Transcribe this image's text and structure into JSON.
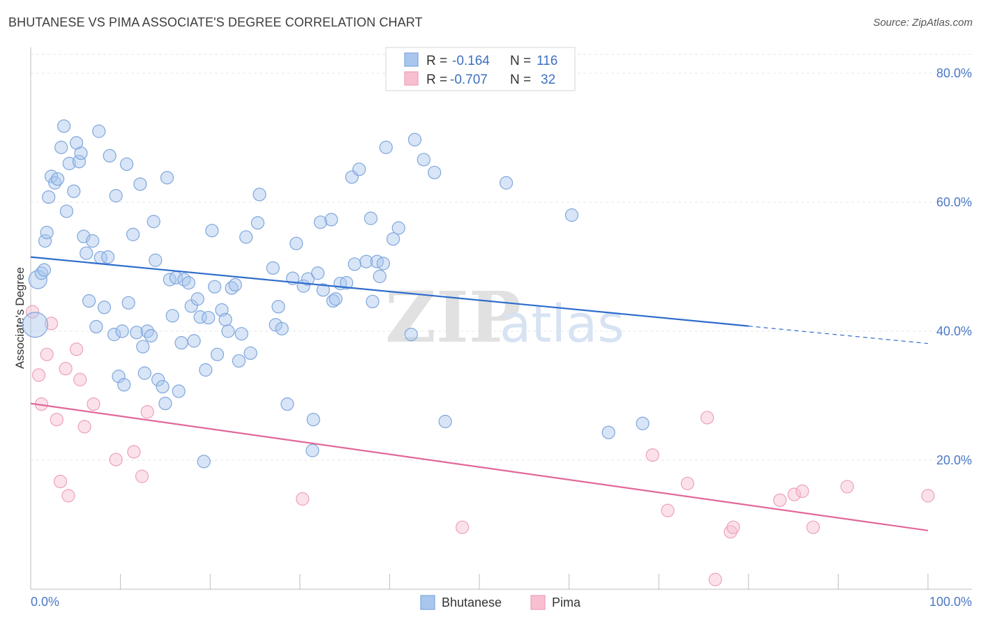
{
  "title": "BHUTANESE VS PIMA ASSOCIATE'S DEGREE CORRELATION CHART",
  "source": "Source: ZipAtlas.com",
  "watermark": {
    "zip": "ZIP",
    "atlas": "atlas"
  },
  "colors": {
    "bhutanese_fill": "#a9c6ee",
    "bhutanese_stroke": "#7fa6dc",
    "bhutanese_line": "#2d6ccc",
    "pima_fill": "#f7bfd0",
    "pima_stroke": "#eea0b8",
    "pima_line": "#e2679a",
    "grid": "#e4e4e4",
    "axis_label": "#4a78c4"
  },
  "legend": {
    "rows": [
      {
        "r_label": "R =",
        "r_value": "-0.164",
        "n_label": "N =",
        "n_value": "116"
      },
      {
        "r_label": "R =",
        "r_value": "-0.707",
        "n_label": "N =",
        "n_value": "32"
      }
    ]
  },
  "bottom_legend": [
    "Bhutanese",
    "Pima"
  ],
  "chart_data": {
    "type": "scatter",
    "title": "BHUTANESE VS PIMA ASSOCIATE'S DEGREE CORRELATION CHART",
    "xlabel": "",
    "ylabel": "Associate's Degree",
    "xlim": [
      0,
      100
    ],
    "ylim": [
      0,
      84
    ],
    "x_tick_labels": [
      "0.0%",
      "100.0%"
    ],
    "y_ticks": [
      20,
      40,
      60,
      80
    ],
    "y_tick_labels": [
      "20.0%",
      "40.0%",
      "60.0%",
      "80.0%"
    ],
    "legend_position": "top-center",
    "series": [
      {
        "name": "Bhutanese",
        "r": -0.164,
        "n": 116,
        "trend": {
          "x0": 0,
          "y0": 51.5,
          "x1": 80,
          "y1": 40.8,
          "dashed_to_x": 100,
          "dashed_to_y": 38.1
        },
        "points": [
          [
            0.5,
            41.0
          ],
          [
            0.8,
            48.0
          ],
          [
            1.2,
            49.0
          ],
          [
            1.5,
            49.5
          ],
          [
            1.6,
            54.0
          ],
          [
            1.8,
            55.3
          ],
          [
            2.0,
            60.8
          ],
          [
            2.3,
            64.0
          ],
          [
            2.7,
            63.0
          ],
          [
            3.0,
            63.6
          ],
          [
            3.4,
            68.5
          ],
          [
            3.7,
            71.8
          ],
          [
            4.0,
            58.6
          ],
          [
            4.3,
            66.0
          ],
          [
            4.8,
            61.7
          ],
          [
            5.1,
            69.2
          ],
          [
            5.4,
            66.3
          ],
          [
            5.6,
            67.6
          ],
          [
            5.9,
            54.7
          ],
          [
            6.2,
            52.1
          ],
          [
            6.5,
            44.7
          ],
          [
            6.9,
            54.0
          ],
          [
            7.3,
            40.7
          ],
          [
            7.6,
            71.0
          ],
          [
            7.8,
            51.4
          ],
          [
            8.2,
            43.7
          ],
          [
            8.6,
            51.5
          ],
          [
            8.8,
            67.2
          ],
          [
            9.3,
            39.5
          ],
          [
            9.5,
            61.0
          ],
          [
            9.8,
            33.0
          ],
          [
            10.2,
            40.0
          ],
          [
            10.4,
            31.7
          ],
          [
            10.7,
            65.9
          ],
          [
            10.9,
            44.4
          ],
          [
            11.4,
            55.0
          ],
          [
            11.8,
            39.8
          ],
          [
            12.2,
            62.8
          ],
          [
            12.5,
            37.6
          ],
          [
            12.7,
            33.5
          ],
          [
            13.0,
            40.0
          ],
          [
            13.4,
            39.3
          ],
          [
            13.7,
            57.0
          ],
          [
            13.9,
            51.0
          ],
          [
            14.2,
            32.5
          ],
          [
            14.7,
            31.4
          ],
          [
            15.0,
            28.8
          ],
          [
            15.2,
            63.8
          ],
          [
            15.5,
            48.0
          ],
          [
            15.8,
            42.4
          ],
          [
            16.2,
            48.3
          ],
          [
            16.5,
            30.7
          ],
          [
            16.8,
            38.2
          ],
          [
            17.1,
            48.0
          ],
          [
            17.6,
            47.5
          ],
          [
            17.9,
            43.9
          ],
          [
            18.2,
            38.5
          ],
          [
            18.6,
            45.0
          ],
          [
            18.9,
            42.2
          ],
          [
            19.3,
            19.8
          ],
          [
            19.5,
            34.0
          ],
          [
            19.8,
            42.1
          ],
          [
            20.2,
            55.6
          ],
          [
            20.5,
            46.9
          ],
          [
            20.8,
            36.4
          ],
          [
            21.3,
            43.3
          ],
          [
            21.7,
            41.8
          ],
          [
            22.0,
            40.0
          ],
          [
            22.4,
            46.7
          ],
          [
            22.8,
            47.2
          ],
          [
            23.2,
            35.4
          ],
          [
            23.5,
            39.6
          ],
          [
            24.0,
            54.6
          ],
          [
            24.5,
            36.6
          ],
          [
            25.3,
            56.8
          ],
          [
            25.5,
            61.2
          ],
          [
            27.0,
            49.8
          ],
          [
            27.3,
            41.0
          ],
          [
            27.6,
            43.8
          ],
          [
            28.0,
            40.4
          ],
          [
            28.6,
            28.7
          ],
          [
            29.2,
            48.2
          ],
          [
            29.6,
            53.6
          ],
          [
            30.4,
            47.0
          ],
          [
            30.9,
            48.1
          ],
          [
            31.5,
            26.3
          ],
          [
            31.4,
            21.5
          ],
          [
            32.0,
            49.0
          ],
          [
            32.3,
            56.9
          ],
          [
            32.6,
            46.4
          ],
          [
            33.5,
            57.3
          ],
          [
            33.7,
            44.7
          ],
          [
            34.0,
            45.0
          ],
          [
            34.5,
            47.4
          ],
          [
            35.2,
            47.5
          ],
          [
            35.8,
            63.9
          ],
          [
            36.1,
            50.4
          ],
          [
            36.6,
            65.1
          ],
          [
            37.4,
            50.8
          ],
          [
            37.9,
            57.5
          ],
          [
            38.1,
            44.6
          ],
          [
            38.6,
            50.8
          ],
          [
            38.9,
            48.5
          ],
          [
            39.3,
            50.5
          ],
          [
            39.6,
            68.5
          ],
          [
            40.4,
            54.3
          ],
          [
            41.0,
            56.0
          ],
          [
            42.4,
            39.5
          ],
          [
            42.8,
            69.7
          ],
          [
            43.8,
            66.6
          ],
          [
            45.0,
            64.6
          ],
          [
            46.2,
            26.0
          ],
          [
            53.0,
            63.0
          ],
          [
            60.3,
            58.0
          ],
          [
            64.4,
            24.3
          ],
          [
            68.2,
            25.7
          ]
        ]
      },
      {
        "name": "Pima",
        "r": -0.707,
        "n": 32,
        "trend": {
          "x0": 0,
          "y0": 28.8,
          "x1": 100,
          "y1": 9.1
        },
        "points": [
          [
            0.2,
            43.0
          ],
          [
            0.9,
            33.2
          ],
          [
            1.2,
            28.7
          ],
          [
            1.8,
            36.4
          ],
          [
            2.3,
            41.2
          ],
          [
            2.9,
            26.3
          ],
          [
            3.3,
            16.7
          ],
          [
            3.9,
            34.2
          ],
          [
            4.2,
            14.5
          ],
          [
            5.1,
            37.2
          ],
          [
            5.5,
            32.5
          ],
          [
            6.0,
            25.2
          ],
          [
            7.0,
            28.7
          ],
          [
            9.5,
            20.1
          ],
          [
            11.5,
            21.3
          ],
          [
            12.4,
            17.5
          ],
          [
            13.0,
            27.5
          ],
          [
            30.3,
            14.0
          ],
          [
            48.1,
            9.6
          ],
          [
            69.3,
            20.8
          ],
          [
            71.0,
            12.2
          ],
          [
            73.2,
            16.4
          ],
          [
            75.4,
            26.6
          ],
          [
            76.3,
            1.5
          ],
          [
            78.0,
            8.9
          ],
          [
            78.3,
            9.6
          ],
          [
            83.5,
            13.8
          ],
          [
            85.1,
            14.7
          ],
          [
            86.0,
            15.2
          ],
          [
            87.2,
            9.6
          ],
          [
            91.0,
            15.9
          ],
          [
            100.0,
            14.5
          ]
        ]
      }
    ]
  }
}
